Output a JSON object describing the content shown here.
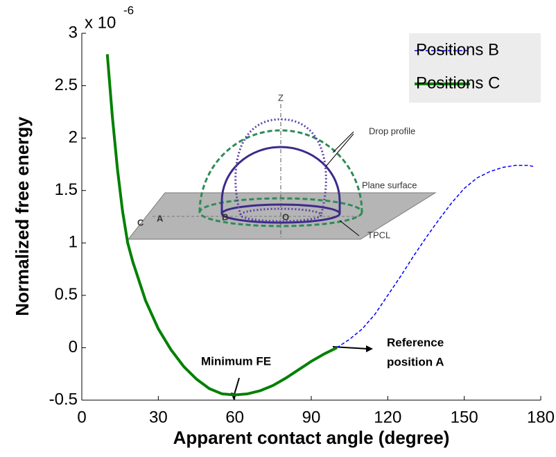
{
  "chart_data": {
    "type": "line",
    "x_label": "Apparent contact angle (degree)",
    "y_label": "Normalized free energy",
    "y_scale_label": "x 10",
    "y_scale_exponent": "-6",
    "xlim": [
      0,
      180
    ],
    "ylim": [
      -0.5,
      3
    ],
    "xticks": [
      0,
      30,
      60,
      90,
      120,
      150,
      180
    ],
    "yticks": [
      -0.5,
      0,
      0.5,
      1,
      1.5,
      2,
      2.5,
      3
    ],
    "legend": "upper right",
    "series": [
      {
        "name": "Positions B",
        "color": "#0000ff",
        "style": "dashed",
        "x": [
          100,
          105,
          110,
          115,
          120,
          125,
          130,
          135,
          140,
          145,
          150,
          155,
          160,
          165,
          170,
          175,
          177
        ],
        "values": [
          0,
          0.08,
          0.18,
          0.32,
          0.5,
          0.68,
          0.87,
          1.05,
          1.22,
          1.38,
          1.52,
          1.62,
          1.68,
          1.72,
          1.74,
          1.74,
          1.73
        ]
      },
      {
        "name": "Positions C",
        "color": "#008000",
        "style": "solid",
        "x": [
          10,
          12,
          14,
          16,
          18,
          20,
          25,
          30,
          35,
          40,
          45,
          50,
          55,
          60,
          65,
          70,
          75,
          80,
          85,
          90,
          95,
          100
        ],
        "values": [
          2.8,
          2.2,
          1.7,
          1.3,
          1.0,
          0.82,
          0.45,
          0.18,
          -0.02,
          -0.18,
          -0.3,
          -0.39,
          -0.44,
          -0.45,
          -0.44,
          -0.41,
          -0.36,
          -0.29,
          -0.21,
          -0.13,
          -0.06,
          0
        ]
      }
    ],
    "annotations": [
      {
        "text": "Minimum FE"
      },
      {
        "lines": [
          "Reference",
          "position A"
        ]
      }
    ],
    "inset_labels": [
      "Z",
      "Drop profile",
      "Plane surface",
      "TPCL",
      "C",
      "A",
      "B",
      "O"
    ]
  }
}
